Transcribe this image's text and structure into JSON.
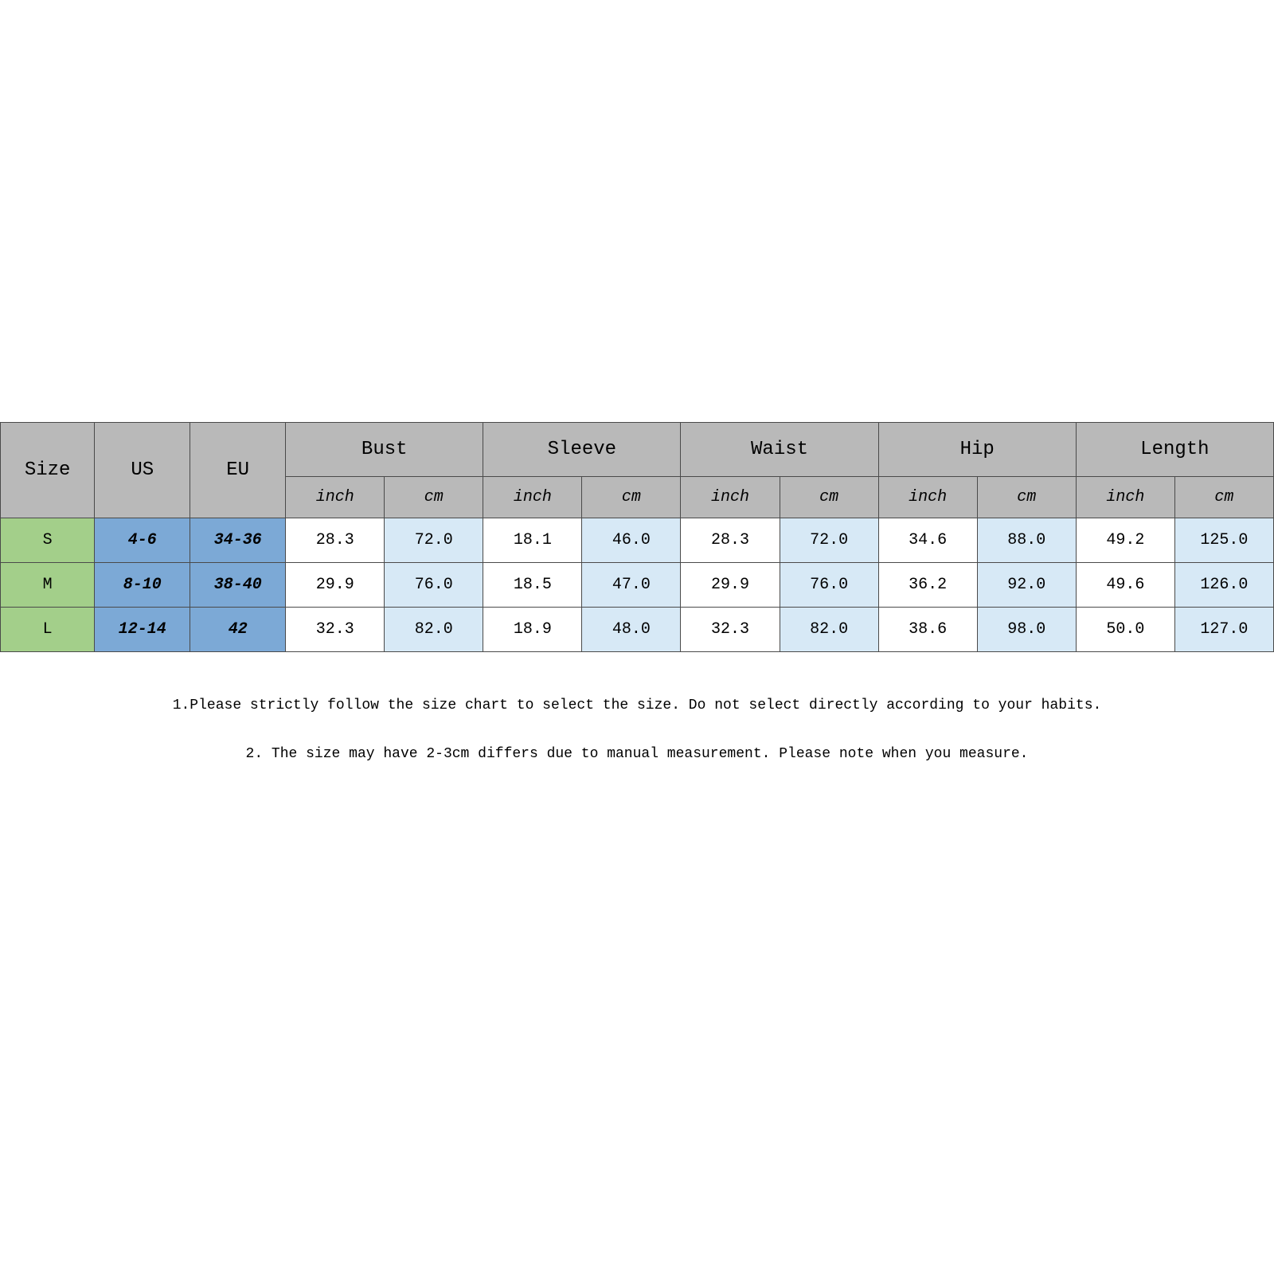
{
  "table": {
    "header": {
      "size": "Size",
      "us": "US",
      "eu": "EU",
      "groups": [
        "Bust",
        "Sleeve",
        "Waist",
        "Hip",
        "Length"
      ],
      "sub": {
        "inch": "inch",
        "cm": "cm"
      }
    },
    "rows": [
      {
        "size": "S",
        "us": "4-6",
        "eu": "34-36",
        "vals": [
          "28.3",
          "72.0",
          "18.1",
          "46.0",
          "28.3",
          "72.0",
          "34.6",
          "88.0",
          "49.2",
          "125.0"
        ]
      },
      {
        "size": "M",
        "us": "8-10",
        "eu": "38-40",
        "vals": [
          "29.9",
          "76.0",
          "18.5",
          "47.0",
          "29.9",
          "76.0",
          "36.2",
          "92.0",
          "49.6",
          "126.0"
        ]
      },
      {
        "size": "L",
        "us": "12-14",
        "eu": "42",
        "vals": [
          "32.3",
          "82.0",
          "18.9",
          "48.0",
          "32.3",
          "82.0",
          "38.6",
          "98.0",
          "50.0",
          "127.0"
        ]
      }
    ],
    "col_widths_pct": [
      7.4,
      7.5,
      7.5,
      7.76,
      7.76,
      7.76,
      7.76,
      7.76,
      7.76,
      7.76,
      7.76,
      7.76,
      7.76
    ],
    "colors": {
      "header_bg": "#b9b9b9",
      "size_bg": "#a3cf8a",
      "useu_bg": "#7ca9d6",
      "inch_bg": "#ffffff",
      "cm_bg": "#d7e9f6",
      "border": "#4a4a4a"
    }
  },
  "notes": {
    "line1": "1.Please strictly follow the size chart to select the size. Do not select directly according to your habits.",
    "line2": "2. The size may have 2-3cm differs due to manual measurement. Please note when you measure."
  }
}
